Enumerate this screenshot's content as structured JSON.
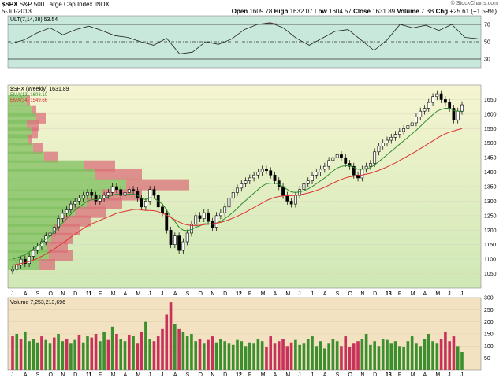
{
  "header": {
    "symbol": "$SPX",
    "name": "S&P 500 Large Cap Index",
    "exchange": "INDX",
    "date": "5-Jul-2013",
    "open_label": "Open",
    "open": "1609.78",
    "high_label": "High",
    "high": "1632.07",
    "low_label": "Low",
    "low": "1604.57",
    "close_label": "Close",
    "close": "1631.89",
    "volume_label": "Volume",
    "volume": "7.3B",
    "chg_label": "Chg",
    "chg": "+25.61 (+1.59%)",
    "watermark": "© StockCharts.com"
  },
  "colors": {
    "up": "#3b8f2e",
    "down": "#c8325a",
    "ema13": "#2e8b2e",
    "ema34": "#e03030",
    "ult_fill": "#8b3a62",
    "ult_bg": "#c9e8dc",
    "price_bg_top": "#f6f5d2",
    "price_bg_bottom": "#cfe8b4",
    "vol_bg": "#f2e2c2",
    "vbp_up": "#7fbf5f",
    "vbp_down": "#d9707a"
  },
  "chart_data": [
    {
      "type": "line",
      "panel": "indicator",
      "title": "ULT(7,14,28) 53.54",
      "ylim": [
        20,
        80
      ],
      "y_ticks": [
        70,
        50,
        30
      ],
      "reference_lines": [
        70,
        50,
        30
      ],
      "x": [
        "2010-07",
        "2010-08",
        "2010-09",
        "2010-10",
        "2010-11",
        "2010-12",
        "2011-01",
        "2011-02",
        "2011-03",
        "2011-04",
        "2011-05",
        "2011-06",
        "2011-07",
        "2011-08",
        "2011-09",
        "2011-10",
        "2011-11",
        "2011-12",
        "2012-01",
        "2012-02",
        "2012-03",
        "2012-04",
        "2012-05",
        "2012-06",
        "2012-07",
        "2012-08",
        "2012-09",
        "2012-10",
        "2012-11",
        "2012-12",
        "2013-01",
        "2013-02",
        "2013-03",
        "2013-04",
        "2013-05",
        "2013-06",
        "2013-07"
      ],
      "series": [
        {
          "values": [
            48,
            52,
            60,
            66,
            58,
            64,
            68,
            63,
            57,
            55,
            50,
            46,
            54,
            36,
            38,
            50,
            47,
            53,
            64,
            70,
            72,
            66,
            54,
            46,
            54,
            62,
            64,
            52,
            40,
            52,
            70,
            66,
            69,
            63,
            70,
            55,
            53.54
          ]
        }
      ]
    },
    {
      "type": "bar",
      "panel": "price",
      "title": "$SPX (Weekly) 1631.89",
      "legend": [
        {
          "name": "EMA(13) 1608.10",
          "color": "#2e8b2e"
        },
        {
          "name": "EMA(34) 1549.66",
          "color": "#e03030"
        }
      ],
      "ylim": [
        1000,
        1700
      ],
      "y_ticks": [
        1650,
        1600,
        1550,
        1500,
        1450,
        1400,
        1350,
        1300,
        1250,
        1200,
        1150,
        1100,
        1050
      ],
      "x_month_labels": [
        "J",
        "A",
        "S",
        "O",
        "N",
        "D",
        "11",
        "F",
        "M",
        "A",
        "M",
        "J",
        "J",
        "A",
        "S",
        "O",
        "N",
        "D",
        "12",
        "F",
        "M",
        "A",
        "M",
        "J",
        "J",
        "A",
        "S",
        "O",
        "N",
        "D",
        "13",
        "F",
        "M",
        "A",
        "M",
        "J",
        "J"
      ],
      "closes": [
        1065,
        1080,
        1100,
        1085,
        1110,
        1130,
        1145,
        1160,
        1180,
        1190,
        1210,
        1240,
        1258,
        1270,
        1290,
        1300,
        1310,
        1320,
        1330,
        1320,
        1300,
        1310,
        1320,
        1330,
        1350,
        1340,
        1320,
        1330,
        1340,
        1335,
        1310,
        1280,
        1300,
        1340,
        1320,
        1280,
        1260,
        1200,
        1150,
        1180,
        1130,
        1160,
        1190,
        1220,
        1250,
        1240,
        1260,
        1230,
        1210,
        1250,
        1260,
        1280,
        1310,
        1330,
        1345,
        1360,
        1370,
        1380,
        1390,
        1400,
        1410,
        1405,
        1390,
        1370,
        1350,
        1320,
        1300,
        1290,
        1320,
        1340,
        1360,
        1370,
        1390,
        1400,
        1410,
        1420,
        1440,
        1450,
        1460,
        1450,
        1430,
        1420,
        1390,
        1380,
        1410,
        1420,
        1430,
        1470,
        1490,
        1500,
        1510,
        1520,
        1530,
        1540,
        1550,
        1560,
        1570,
        1590,
        1610,
        1620,
        1640,
        1660,
        1670,
        1650,
        1640,
        1620,
        1580,
        1610,
        1632
      ],
      "ema13": [
        1100,
        1105,
        1110,
        1115,
        1125,
        1135,
        1145,
        1155,
        1170,
        1180,
        1195,
        1210,
        1225,
        1240,
        1255,
        1270,
        1280,
        1290,
        1300,
        1305,
        1305,
        1308,
        1310,
        1315,
        1320,
        1325,
        1322,
        1322,
        1325,
        1325,
        1320,
        1310,
        1305,
        1312,
        1310,
        1300,
        1290,
        1270,
        1245,
        1230,
        1210,
        1200,
        1198,
        1202,
        1210,
        1215,
        1222,
        1222,
        1220,
        1225,
        1230,
        1240,
        1250,
        1262,
        1275,
        1290,
        1302,
        1315,
        1328,
        1340,
        1352,
        1360,
        1362,
        1362,
        1358,
        1350,
        1340,
        1332,
        1330,
        1332,
        1336,
        1342,
        1350,
        1360,
        1370,
        1380,
        1392,
        1404,
        1414,
        1420,
        1422,
        1422,
        1416,
        1410,
        1410,
        1412,
        1416,
        1425,
        1436,
        1448,
        1460,
        1472,
        1484,
        1496,
        1508,
        1520,
        1532,
        1544,
        1558,
        1572,
        1585,
        1598,
        1610,
        1616,
        1620,
        1620,
        1612,
        1610,
        1608
      ],
      "ema34": [
        1080,
        1082,
        1085,
        1088,
        1092,
        1097,
        1103,
        1110,
        1118,
        1126,
        1135,
        1145,
        1155,
        1165,
        1176,
        1186,
        1196,
        1206,
        1215,
        1222,
        1228,
        1234,
        1240,
        1246,
        1252,
        1258,
        1262,
        1265,
        1268,
        1271,
        1272,
        1270,
        1268,
        1268,
        1267,
        1264,
        1258,
        1252,
        1244,
        1236,
        1228,
        1222,
        1218,
        1216,
        1216,
        1217,
        1219,
        1221,
        1222,
        1224,
        1227,
        1231,
        1236,
        1242,
        1248,
        1255,
        1262,
        1270,
        1278,
        1286,
        1294,
        1302,
        1308,
        1313,
        1316,
        1318,
        1319,
        1319,
        1320,
        1322,
        1325,
        1328,
        1332,
        1337,
        1342,
        1348,
        1355,
        1362,
        1369,
        1375,
        1380,
        1384,
        1386,
        1388,
        1390,
        1393,
        1396,
        1401,
        1406,
        1412,
        1418,
        1425,
        1432,
        1440,
        1448,
        1456,
        1464,
        1472,
        1481,
        1490,
        1499,
        1508,
        1517,
        1525,
        1532,
        1538,
        1542,
        1546,
        1549.66
      ]
    },
    {
      "type": "bar",
      "panel": "volume",
      "title": "Volume 7,253,213,696",
      "ylim": [
        0,
        300
      ],
      "y_ticks": [
        300,
        250,
        200,
        150,
        100,
        50
      ],
      "values": [
        140,
        150,
        130,
        160,
        120,
        130,
        115,
        140,
        125,
        110,
        135,
        150,
        120,
        130,
        110,
        125,
        145,
        115,
        140,
        135,
        150,
        120,
        160,
        125,
        180,
        150,
        130,
        120,
        145,
        140,
        110,
        160,
        200,
        130,
        120,
        140,
        170,
        230,
        280,
        190,
        170,
        160,
        140,
        150,
        120,
        130,
        110,
        125,
        140,
        115,
        130,
        120,
        110,
        105,
        125,
        120,
        100,
        115,
        110,
        130,
        120,
        95,
        140,
        110,
        120,
        130,
        100,
        115,
        125,
        105,
        110,
        130,
        140,
        100,
        120,
        90,
        110,
        130,
        120,
        100,
        140,
        95,
        110,
        120,
        130,
        150,
        105,
        120,
        100,
        130,
        125,
        110,
        120,
        100,
        95,
        120,
        140,
        110,
        100,
        130,
        150,
        120,
        110,
        130,
        160,
        120,
        140,
        100,
        75
      ],
      "up": [
        0,
        1,
        0,
        1,
        1,
        1,
        1,
        0,
        1,
        1,
        0,
        1,
        1,
        0,
        1,
        1,
        0,
        1,
        1,
        0,
        0,
        1,
        1,
        0,
        1,
        0,
        1,
        1,
        0,
        1,
        0,
        0,
        1,
        1,
        0,
        0,
        0,
        0,
        0,
        1,
        0,
        1,
        1,
        1,
        1,
        0,
        1,
        0,
        0,
        1,
        1,
        1,
        1,
        1,
        1,
        1,
        1,
        1,
        1,
        1,
        1,
        0,
        0,
        0,
        0,
        0,
        0,
        0,
        1,
        1,
        1,
        1,
        1,
        1,
        1,
        1,
        1,
        1,
        1,
        0,
        0,
        0,
        0,
        0,
        1,
        1,
        1,
        1,
        1,
        1,
        1,
        1,
        1,
        1,
        1,
        1,
        1,
        1,
        1,
        1,
        1,
        1,
        1,
        0,
        0,
        0,
        0,
        1,
        1
      ]
    }
  ]
}
